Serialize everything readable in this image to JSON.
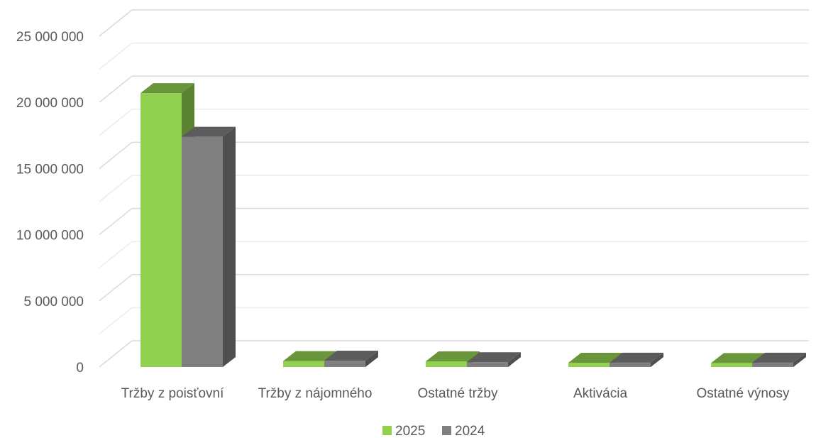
{
  "chart_data": {
    "type": "bar",
    "title": "",
    "xlabel": "",
    "ylabel": "",
    "categories": [
      "Tržby z poisťovní",
      "Tržby z nájomného",
      "Ostatné tržby",
      "Aktivácia",
      "Ostatné výnosy"
    ],
    "series": [
      {
        "name": "2025",
        "color": "#92d050",
        "values": [
          20700000,
          450000,
          430000,
          320000,
          300000
        ]
      },
      {
        "name": "2024",
        "color": "#808080",
        "values": [
          17400000,
          480000,
          360000,
          330000,
          330000
        ]
      }
    ],
    "ylim": [
      0,
      25000000
    ],
    "yticks": [
      "0",
      "5 000 000",
      "10 000 000",
      "15 000 000",
      "20 000 000",
      "25 000 000"
    ],
    "grid": true,
    "style": "3d-clustered-column",
    "legend_position": "bottom"
  }
}
